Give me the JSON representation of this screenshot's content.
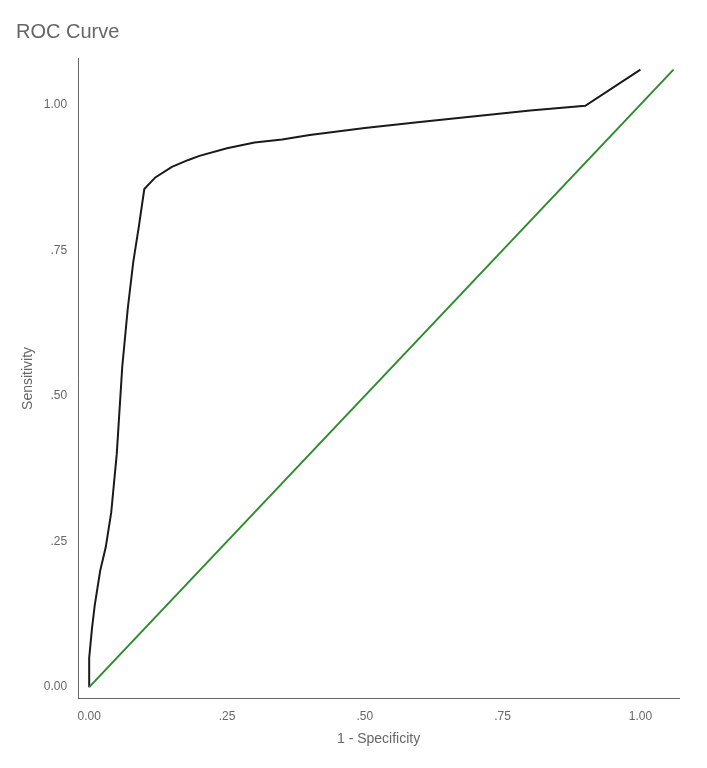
{
  "chart_data": {
    "type": "line",
    "title": "ROC Curve",
    "xlabel": "1 - Specificity",
    "ylabel": "Sensitivity",
    "xlim": [
      -0.02,
      1.07
    ],
    "ylim": [
      -0.02,
      1.08
    ],
    "xticks": [
      {
        "value": 0.0,
        "label": "0.00"
      },
      {
        "value": 0.25,
        "label": ".25"
      },
      {
        "value": 0.5,
        "label": ".50"
      },
      {
        "value": 0.75,
        "label": ".75"
      },
      {
        "value": 1.0,
        "label": "1.00"
      }
    ],
    "yticks": [
      {
        "value": 0.0,
        "label": "0.00"
      },
      {
        "value": 0.25,
        "label": ".25"
      },
      {
        "value": 0.5,
        "label": ".50"
      },
      {
        "value": 0.75,
        "label": ".75"
      },
      {
        "value": 1.0,
        "label": "1.00"
      }
    ],
    "grid": false,
    "series": [
      {
        "color": "#2e8b2e",
        "x": [
          0.0,
          1.06
        ],
        "values": [
          0.0,
          1.06
        ]
      },
      {
        "color": "#1a1a1a",
        "x": [
          0.0,
          0.0,
          0.005,
          0.01,
          0.015,
          0.02,
          0.025,
          0.03,
          0.04,
          0.05,
          0.06,
          0.07,
          0.08,
          0.09,
          0.1,
          0.12,
          0.15,
          0.18,
          0.2,
          0.25,
          0.3,
          0.35,
          0.4,
          0.5,
          0.6,
          0.7,
          0.8,
          0.9,
          1.0
        ],
        "values": [
          0.0,
          0.05,
          0.1,
          0.14,
          0.17,
          0.2,
          0.22,
          0.24,
          0.3,
          0.4,
          0.55,
          0.65,
          0.73,
          0.79,
          0.855,
          0.875,
          0.893,
          0.905,
          0.912,
          0.925,
          0.935,
          0.94,
          0.948,
          0.96,
          0.97,
          0.98,
          0.99,
          0.998,
          1.06
        ]
      }
    ]
  }
}
